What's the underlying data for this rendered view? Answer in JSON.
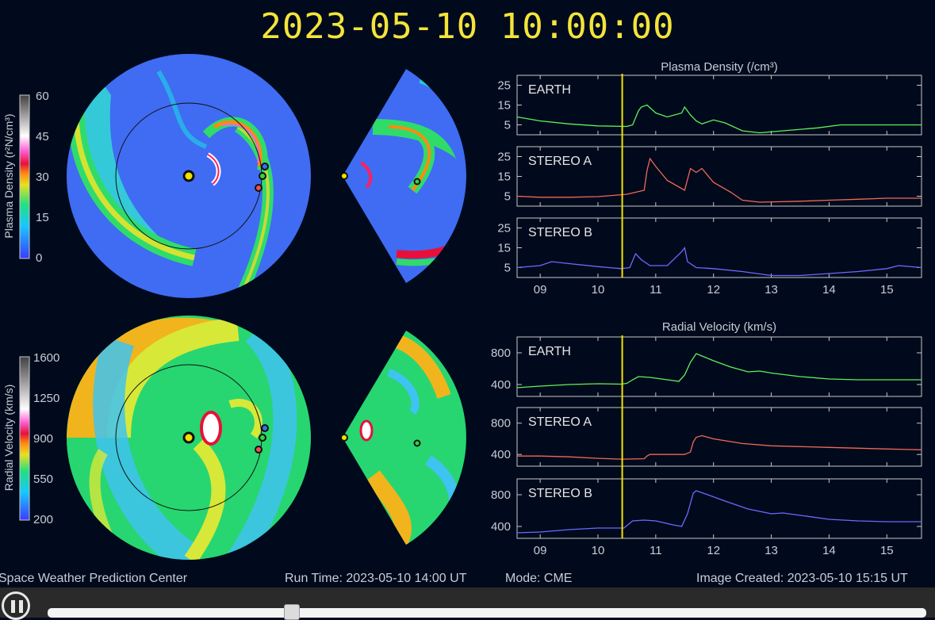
{
  "header": {
    "timestamp": "2023-05-10 10:00:00"
  },
  "colorbars": {
    "density": {
      "label": "Plasma Density (r²N/cm³)",
      "ticks": [
        "60",
        "45",
        "30",
        "15",
        "0"
      ]
    },
    "velocity": {
      "label": "Radial Velocity (km/s)",
      "ticks": [
        "1600",
        "1250",
        "900",
        "550",
        "200"
      ]
    }
  },
  "chart_data": [
    {
      "type": "line",
      "title": "Plasma Density (/cm³)",
      "xlim": [
        8.6,
        15.6
      ],
      "x_ticks": [
        "09",
        "10",
        "11",
        "12",
        "13",
        "14",
        "15"
      ],
      "current_time_marker": 10.42,
      "panels": [
        {
          "label": "EARTH",
          "color": "#5ef05e",
          "ylim": [
            0,
            30
          ],
          "y_ticks": [
            "25",
            "15",
            "5"
          ],
          "x": [
            8.6,
            9.0,
            9.5,
            10.0,
            10.5,
            10.6,
            10.7,
            10.75,
            10.85,
            11.0,
            11.2,
            11.45,
            11.5,
            11.6,
            11.7,
            11.8,
            12.0,
            12.2,
            12.5,
            12.8,
            13.2,
            13.8,
            14.2,
            15.0,
            15.6
          ],
          "y": [
            9,
            7,
            5.5,
            4.5,
            4.2,
            5,
            12,
            14,
            15,
            11,
            9,
            11,
            14,
            10,
            7,
            5.5,
            7.5,
            6,
            2,
            1,
            2,
            3.5,
            5,
            5,
            5
          ]
        },
        {
          "label": "STEREO A",
          "color": "#f06858",
          "ylim": [
            0,
            30
          ],
          "y_ticks": [
            "25",
            "15",
            "5"
          ],
          "x": [
            8.6,
            9.0,
            9.5,
            10.0,
            10.5,
            10.8,
            10.85,
            10.9,
            11.0,
            11.2,
            11.5,
            11.6,
            11.7,
            11.8,
            12.0,
            12.3,
            12.5,
            12.8,
            13.5,
            14.0,
            14.5,
            15.0,
            15.6
          ],
          "y": [
            5,
            4.5,
            4.5,
            4.8,
            6,
            8,
            18,
            24,
            20,
            13,
            8,
            19,
            17,
            19,
            12,
            7,
            3,
            2,
            2.5,
            3,
            3.5,
            4,
            4
          ]
        },
        {
          "label": "STEREO B",
          "color": "#6a6aff",
          "ylim": [
            0,
            30
          ],
          "y_ticks": [
            "25",
            "15",
            "5"
          ],
          "x": [
            8.6,
            9.0,
            9.2,
            9.5,
            10.0,
            10.4,
            10.55,
            10.65,
            10.75,
            10.9,
            11.2,
            11.45,
            11.5,
            11.55,
            11.7,
            12.0,
            12.5,
            13.0,
            13.5,
            14.0,
            14.5,
            15.0,
            15.2,
            15.6
          ],
          "y": [
            5,
            6,
            8,
            7,
            5.5,
            4.5,
            5,
            12,
            9,
            6,
            6,
            13,
            15,
            8,
            5,
            4.5,
            3,
            1,
            1,
            2,
            3,
            4.5,
            6,
            5
          ]
        }
      ]
    },
    {
      "type": "line",
      "title": "Radial Velocity (km/s)",
      "xlim": [
        8.6,
        15.6
      ],
      "x_ticks": [
        "09",
        "10",
        "11",
        "12",
        "13",
        "14",
        "15"
      ],
      "current_time_marker": 10.42,
      "panels": [
        {
          "label": "EARTH",
          "color": "#5ef05e",
          "ylim": [
            250,
            1000
          ],
          "y_ticks": [
            "800",
            "400"
          ],
          "x": [
            8.6,
            9.0,
            9.5,
            10.0,
            10.4,
            10.5,
            10.6,
            10.7,
            10.9,
            11.1,
            11.3,
            11.4,
            11.5,
            11.6,
            11.7,
            11.8,
            12.0,
            12.3,
            12.6,
            12.8,
            13.0,
            13.5,
            14.0,
            14.5,
            15.0,
            15.6
          ],
          "y": [
            360,
            380,
            400,
            410,
            405,
            415,
            460,
            500,
            490,
            470,
            450,
            440,
            520,
            680,
            790,
            760,
            700,
            620,
            560,
            570,
            545,
            500,
            470,
            460,
            460,
            460
          ]
        },
        {
          "label": "STEREO A",
          "color": "#f06858",
          "ylim": [
            250,
            1000
          ],
          "y_ticks": [
            "800",
            "400"
          ],
          "x": [
            8.6,
            9.0,
            9.5,
            10.0,
            10.4,
            10.8,
            10.85,
            10.9,
            11.2,
            11.5,
            11.6,
            11.65,
            11.7,
            11.8,
            12.0,
            12.5,
            13.0,
            13.5,
            14.0,
            14.5,
            15.0,
            15.6
          ],
          "y": [
            380,
            380,
            370,
            350,
            340,
            345,
            380,
            400,
            400,
            400,
            430,
            560,
            620,
            640,
            600,
            540,
            510,
            500,
            490,
            480,
            470,
            460
          ]
        },
        {
          "label": "STEREO B",
          "color": "#6a6aff",
          "ylim": [
            250,
            1000
          ],
          "y_ticks": [
            "800",
            "400"
          ],
          "x": [
            8.6,
            9.0,
            9.5,
            10.0,
            10.4,
            10.45,
            10.6,
            10.8,
            11.0,
            11.3,
            11.45,
            11.55,
            11.65,
            11.7,
            11.9,
            12.2,
            12.6,
            13.0,
            13.2,
            13.5,
            14.0,
            14.5,
            15.0,
            15.6
          ],
          "y": [
            320,
            330,
            360,
            380,
            380,
            380,
            470,
            480,
            470,
            420,
            400,
            560,
            820,
            850,
            800,
            720,
            620,
            560,
            570,
            540,
            490,
            470,
            460,
            460
          ]
        }
      ]
    }
  ],
  "footer": {
    "org": "Space Weather Prediction Center",
    "run_time": "Run Time: 2023-05-10 14:00 UT",
    "mode": "Mode: CME",
    "created": "Image Created: 2023-05-10 15:15 UT"
  },
  "controls": {
    "progress": 0.26
  }
}
